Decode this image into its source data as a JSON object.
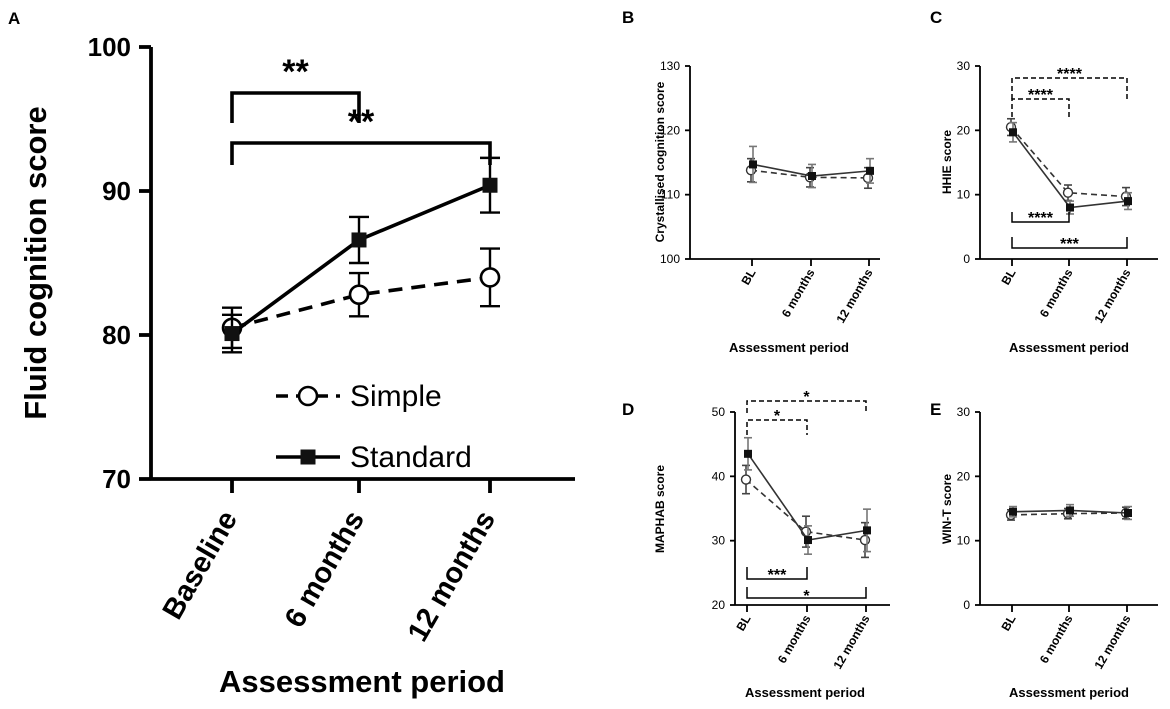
{
  "chart_data": [
    {
      "panel": "A",
      "type": "line",
      "ylabel": "Fluid cognition score",
      "xlabel": "Assessment period",
      "categories": [
        "Baseline",
        "6 months",
        "12 months"
      ],
      "ylim": [
        70,
        100
      ],
      "yticks": [
        70,
        80,
        90,
        100
      ],
      "series": [
        {
          "name": "Simple",
          "style": "dashed",
          "marker": "open-circle",
          "values": [
            80.5,
            82.8,
            84.0
          ],
          "errors": [
            1.4,
            1.5,
            2.0
          ]
        },
        {
          "name": "Standard",
          "style": "solid",
          "marker": "filled-square",
          "values": [
            80.1,
            86.6,
            90.4
          ],
          "errors": [
            1.3,
            1.6,
            1.9
          ]
        }
      ],
      "legend": [
        "Simple",
        "Standard"
      ],
      "brackets": [
        {
          "from": 0,
          "to": 1,
          "label": "**",
          "style": "solid",
          "side": "above"
        },
        {
          "from": 0,
          "to": 2,
          "label": "**",
          "style": "solid",
          "side": "above"
        }
      ]
    },
    {
      "panel": "B",
      "type": "line",
      "ylabel": "Crystallised cognition score",
      "xlabel": "Assessment period",
      "categories": [
        "BL",
        "6 months",
        "12 months"
      ],
      "ylim": [
        100,
        130
      ],
      "yticks": [
        100,
        110,
        120,
        130
      ],
      "series": [
        {
          "name": "Simple",
          "style": "dashed",
          "marker": "open-circle",
          "values": [
            113.8,
            112.7,
            112.6
          ],
          "errors": [
            1.8,
            1.5,
            1.6
          ]
        },
        {
          "name": "Standard",
          "style": "solid",
          "marker": "filled-square",
          "values": [
            114.7,
            112.9,
            113.7
          ],
          "errors": [
            2.8,
            1.8,
            1.9
          ]
        }
      ],
      "brackets": []
    },
    {
      "panel": "C",
      "type": "line",
      "ylabel": "HHIE score",
      "xlabel": "Assessment period",
      "categories": [
        "BL",
        "6 months",
        "12 months"
      ],
      "ylim": [
        0,
        30
      ],
      "yticks": [
        0,
        10,
        20,
        30
      ],
      "series": [
        {
          "name": "Simple",
          "style": "dashed",
          "marker": "open-circle",
          "values": [
            20.5,
            10.3,
            9.7
          ],
          "errors": [
            1.3,
            1.2,
            1.4
          ]
        },
        {
          "name": "Standard",
          "style": "solid",
          "marker": "filled-square",
          "values": [
            19.7,
            8.0,
            9.0
          ],
          "errors": [
            1.5,
            1.0,
            1.3
          ]
        }
      ],
      "brackets": [
        {
          "from": 0,
          "to": 1,
          "label": "****",
          "style": "dashed",
          "side": "above"
        },
        {
          "from": 0,
          "to": 2,
          "label": "****",
          "style": "dashed",
          "side": "above"
        },
        {
          "from": 0,
          "to": 1,
          "label": "****",
          "style": "solid",
          "side": "below"
        },
        {
          "from": 0,
          "to": 2,
          "label": "***",
          "style": "solid",
          "side": "below"
        }
      ]
    },
    {
      "panel": "D",
      "type": "line",
      "ylabel": "MAPHAB score",
      "xlabel": "Assessment period",
      "categories": [
        "BL",
        "6 months",
        "12 months"
      ],
      "ylim": [
        20,
        50
      ],
      "yticks": [
        20,
        30,
        40,
        50
      ],
      "series": [
        {
          "name": "Simple",
          "style": "dashed",
          "marker": "open-circle",
          "values": [
            39.5,
            31.4,
            30.1
          ],
          "errors": [
            2.2,
            2.4,
            2.7
          ]
        },
        {
          "name": "Standard",
          "style": "solid",
          "marker": "filled-square",
          "values": [
            43.5,
            30.1,
            31.6
          ],
          "errors": [
            2.5,
            2.2,
            3.3
          ]
        }
      ],
      "brackets": [
        {
          "from": 0,
          "to": 1,
          "label": "*",
          "style": "dashed",
          "side": "above"
        },
        {
          "from": 0,
          "to": 2,
          "label": "*",
          "style": "dashed",
          "side": "above"
        },
        {
          "from": 0,
          "to": 1,
          "label": "***",
          "style": "solid",
          "side": "below"
        },
        {
          "from": 0,
          "to": 2,
          "label": "*",
          "style": "solid",
          "side": "below"
        }
      ]
    },
    {
      "panel": "E",
      "type": "line",
      "ylabel": "WIN-T score",
      "xlabel": "Assessment period",
      "categories": [
        "BL",
        "6 months",
        "12 months"
      ],
      "ylim": [
        0,
        30
      ],
      "yticks": [
        0,
        10,
        20,
        30
      ],
      "series": [
        {
          "name": "Simple",
          "style": "dashed",
          "marker": "open-circle",
          "values": [
            14.0,
            14.2,
            14.3
          ],
          "errors": [
            0.8,
            0.8,
            0.9
          ]
        },
        {
          "name": "Standard",
          "style": "solid",
          "marker": "filled-square",
          "values": [
            14.5,
            14.7,
            14.3
          ],
          "errors": [
            0.8,
            0.9,
            1.0
          ]
        }
      ],
      "brackets": []
    }
  ]
}
